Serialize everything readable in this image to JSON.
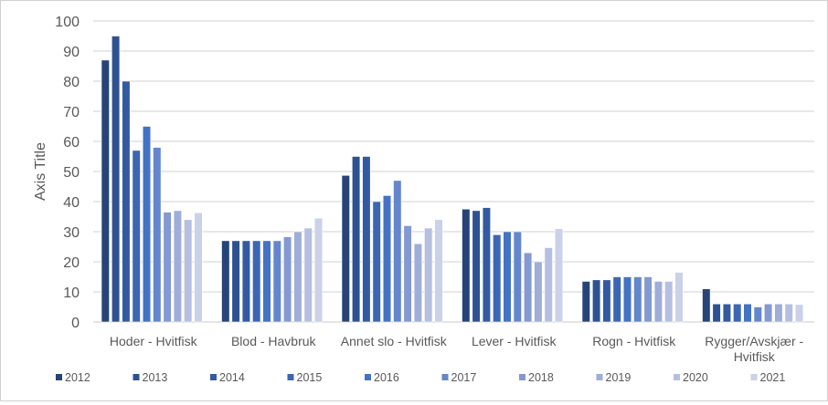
{
  "chart_data": {
    "type": "bar",
    "title": "",
    "xlabel": "",
    "ylabel": "Axis Title",
    "ylim": [
      0,
      100
    ],
    "yticks": [
      0,
      10,
      20,
      30,
      40,
      50,
      60,
      70,
      80,
      90,
      100
    ],
    "grid": true,
    "legend_position": "bottom",
    "categories": [
      "Hoder - Hvitfisk",
      "Blod - Havbruk",
      "Annet slo - Hvitfisk",
      "Lever - Hvitfisk",
      "Rogn - Hvitfisk",
      "Rygger/Avskjær - Hvitfisk"
    ],
    "category_lines": [
      [
        "Hoder - Hvitfisk"
      ],
      [
        "Blod - Havbruk"
      ],
      [
        "Annet slo - Hvitfisk"
      ],
      [
        "Lever - Hvitfisk"
      ],
      [
        "Rogn - Hvitfisk"
      ],
      [
        "Rygger/Avskjær -",
        "Hvitfisk"
      ]
    ],
    "series": [
      {
        "name": "2012",
        "color": "#264478",
        "values": [
          87,
          27,
          48.7,
          37.5,
          13.5,
          11
        ]
      },
      {
        "name": "2013",
        "color": "#2e5291",
        "values": [
          95,
          27,
          55,
          37,
          14,
          6
        ]
      },
      {
        "name": "2014",
        "color": "#335aa1",
        "values": [
          80,
          27,
          55,
          38,
          14,
          6
        ]
      },
      {
        "name": "2015",
        "color": "#3b66b3",
        "values": [
          57,
          27,
          40,
          29,
          15,
          6
        ]
      },
      {
        "name": "2016",
        "color": "#4472c4",
        "values": [
          65,
          27,
          42,
          30,
          15,
          6
        ]
      },
      {
        "name": "2017",
        "color": "#6486cc",
        "values": [
          58,
          27,
          47,
          30,
          15,
          5
        ]
      },
      {
        "name": "2018",
        "color": "#8499d2",
        "values": [
          36.5,
          28.3,
          32,
          23,
          15,
          6
        ]
      },
      {
        "name": "2019",
        "color": "#9eaed9",
        "values": [
          37,
          30,
          26,
          20,
          13.5,
          6
        ]
      },
      {
        "name": "2020",
        "color": "#b5c0e1",
        "values": [
          34,
          31.2,
          31.2,
          24.7,
          13.5,
          6
        ]
      },
      {
        "name": "2021",
        "color": "#cad1e8",
        "values": [
          36.3,
          34.5,
          34,
          31,
          16.5,
          5.8
        ]
      }
    ]
  }
}
